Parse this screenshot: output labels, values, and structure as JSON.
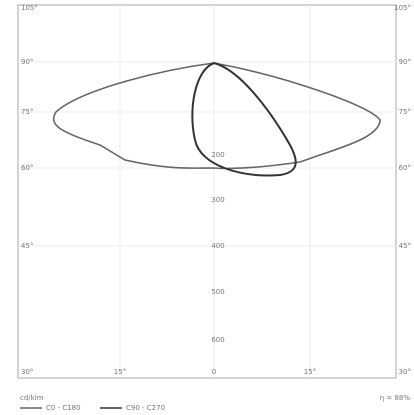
{
  "diagram": {
    "left_labels": [
      "105°",
      "90°",
      "75°",
      "60°",
      "45°",
      "30°"
    ],
    "right_labels": [
      "105°",
      "90°",
      "75°",
      "60°",
      "45°",
      "30°"
    ],
    "bottom_labels": [
      "15°",
      "0",
      "15°"
    ],
    "center_labels": [
      "200",
      "300",
      "400",
      "500",
      "600"
    ],
    "unit": "cd/klm",
    "efficiency": "η = 88%",
    "legend": [
      "C0 - C180",
      "C90 - C270"
    ]
  }
}
